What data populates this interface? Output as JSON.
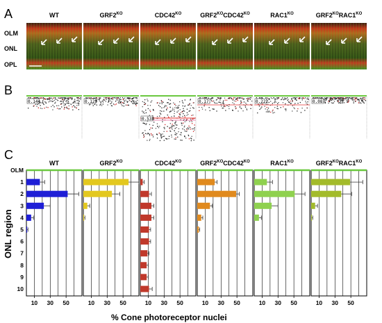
{
  "panels": {
    "a": "A",
    "b": "B",
    "c": "C"
  },
  "genotypes": [
    {
      "name": "WT",
      "sup": ""
    },
    {
      "name": "GRF2",
      "sup": "KO"
    },
    {
      "name": "CDC42",
      "sup": "KO"
    },
    {
      "name": "GRF2",
      "sup": "KO",
      "name2": "CDC42",
      "sup2": "KO"
    },
    {
      "name": "RAC1",
      "sup": "KO"
    },
    {
      "name": "GRF2",
      "sup": "KO",
      "name2": "RAC1",
      "sup2": "KO"
    }
  ],
  "retina_layers": [
    "OLM",
    "ONL",
    "OPL"
  ],
  "scatter_labels": [
    "0.144",
    "0.129",
    "0.538",
    "0.17",
    "0.222",
    "0.087"
  ],
  "chart_data": {
    "type": "bar",
    "orientation": "horizontal",
    "xlabel": "% Cone photoreceptor nuclei",
    "ylabel": "ONL region",
    "row_labels": [
      "OLM",
      "1",
      "2",
      "3",
      "4",
      "5",
      "6",
      "7",
      "8",
      "9",
      "10"
    ],
    "categories": [
      "1",
      "2",
      "3",
      "4",
      "5",
      "6",
      "7",
      "8",
      "9",
      "10"
    ],
    "xticks": [
      10,
      30,
      50
    ],
    "xlim": [
      0,
      70
    ],
    "series": [
      {
        "name": "WT",
        "color": "#1f1fd6",
        "values": [
          17,
          52,
          22,
          6,
          1,
          0,
          0,
          0,
          0,
          0
        ],
        "errors": [
          6,
          14,
          8,
          3,
          1,
          0,
          0,
          0,
          0,
          0
        ]
      },
      {
        "name": "GRF2KO",
        "color": "#e3c81f",
        "values": [
          57,
          36,
          5,
          1,
          0,
          0,
          0,
          0,
          0,
          0
        ],
        "errors": [
          13,
          10,
          3,
          1,
          0,
          0,
          0,
          0,
          0,
          0
        ]
      },
      {
        "name": "CDC42KO",
        "color": "#c0392b",
        "values": [
          3,
          11,
          14,
          14,
          11,
          11,
          9,
          8,
          8,
          11
        ],
        "errors": [
          2,
          3,
          3,
          3,
          2,
          2,
          2,
          2,
          2,
          4
        ]
      },
      {
        "name": "GRF2KOCDC42KO",
        "color": "#e08a1e",
        "values": [
          22,
          49,
          16,
          5,
          2,
          0,
          0,
          0,
          0,
          0
        ],
        "errors": [
          3,
          4,
          3,
          2,
          1,
          0,
          0,
          0,
          0,
          0
        ]
      },
      {
        "name": "RAC1KO",
        "color": "#8fd14f",
        "values": [
          16,
          51,
          22,
          6,
          0,
          0,
          0,
          0,
          0,
          0
        ],
        "errors": [
          7,
          13,
          8,
          3,
          0,
          0,
          0,
          0,
          0,
          0
        ]
      },
      {
        "name": "GRF2KORAC1KO",
        "color": "#a3bb2b",
        "values": [
          49,
          38,
          5,
          1,
          0,
          0,
          0,
          0,
          0,
          0
        ],
        "errors": [
          16,
          13,
          3,
          1,
          0,
          0,
          0,
          0,
          0,
          0
        ]
      }
    ]
  },
  "colors": {
    "olm_line": "#6ac83e",
    "grid": "#000000",
    "scatter_line_red": "#e83030",
    "scatter_line_pink": "#e0609a"
  }
}
